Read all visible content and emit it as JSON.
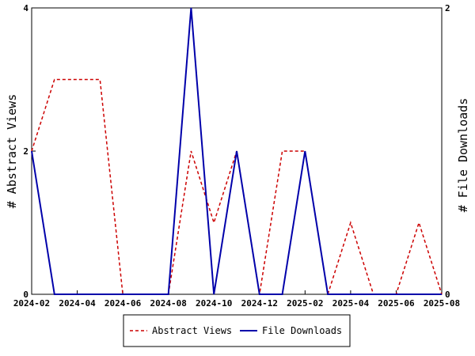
{
  "chart_data": {
    "type": "line",
    "x_tick_labels": [
      "2024-02",
      "2024-04",
      "2024-06",
      "2024-08",
      "2024-10",
      "2024-12",
      "2025-02",
      "2025-04",
      "2025-06",
      "2025-08"
    ],
    "x": [
      "2024-02",
      "2024-03",
      "2024-04",
      "2024-05",
      "2024-06",
      "2024-07",
      "2024-08",
      "2024-09",
      "2024-10",
      "2024-11",
      "2024-12",
      "2025-01",
      "2025-02",
      "2025-03",
      "2025-04",
      "2025-05",
      "2025-06",
      "2025-07",
      "2025-08"
    ],
    "series": [
      {
        "name": "Abstract Views",
        "axis": "left",
        "color": "#cc0000",
        "dash": "dashed",
        "values": [
          2,
          3,
          3,
          3,
          0,
          0,
          0,
          2,
          1,
          2,
          0,
          2,
          2,
          0,
          1,
          0,
          0,
          1,
          0
        ]
      },
      {
        "name": "File Downloads",
        "axis": "right",
        "color": "#0000aa",
        "dash": "solid",
        "values": [
          1,
          0,
          0,
          0,
          0,
          0,
          0,
          2,
          0,
          1,
          0,
          0,
          1,
          0,
          0,
          0,
          0,
          0,
          0
        ]
      }
    ],
    "y_left": {
      "label": "# Abstract Views",
      "ticks": [
        "0",
        "2",
        "4"
      ],
      "ylim": [
        0,
        4
      ]
    },
    "y_right": {
      "label": "# File Downloads",
      "ticks": [
        "0",
        "2"
      ],
      "ylim": [
        0,
        2
      ]
    },
    "grid": false,
    "legend_position": "bottom-center"
  }
}
